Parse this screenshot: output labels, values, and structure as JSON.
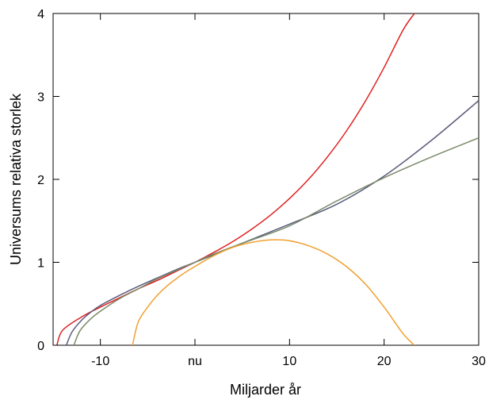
{
  "chart_data": {
    "type": "line",
    "title": "",
    "xlabel": "Miljarder år",
    "ylabel": "Universums relativa storlek",
    "xlim": [
      -15,
      30
    ],
    "ylim": [
      0,
      4
    ],
    "x_ticks": [
      {
        "value": -10,
        "label": "-10"
      },
      {
        "value": 0,
        "label": "nu"
      },
      {
        "value": 10,
        "label": "10"
      },
      {
        "value": 20,
        "label": "20"
      },
      {
        "value": 30,
        "label": "30"
      }
    ],
    "y_ticks": [
      {
        "value": 0,
        "label": "0"
      },
      {
        "value": 1,
        "label": "1"
      },
      {
        "value": 2,
        "label": "2"
      },
      {
        "value": 3,
        "label": "3"
      },
      {
        "value": 4,
        "label": "4"
      }
    ],
    "grid": false,
    "legend": "none",
    "series": [
      {
        "color": "#e02020",
        "x": [
          -14.6,
          -14,
          -12,
          -10,
          -8,
          -6,
          -4,
          -2,
          0,
          2,
          4,
          6,
          8,
          10,
          12,
          14,
          16,
          18,
          20,
          22,
          23.2
        ],
        "y": [
          0,
          0.18,
          0.34,
          0.46,
          0.57,
          0.68,
          0.78,
          0.89,
          1.0,
          1.12,
          1.25,
          1.4,
          1.57,
          1.77,
          2.0,
          2.27,
          2.58,
          2.94,
          3.35,
          3.8,
          4.0
        ]
      },
      {
        "color": "#5b5b7d",
        "x": [
          -13.6,
          -13,
          -12,
          -11,
          -10,
          -8,
          -6,
          -4,
          -2,
          0,
          2,
          5,
          10,
          15,
          20,
          25,
          30
        ],
        "y": [
          0,
          0.16,
          0.3,
          0.4,
          0.48,
          0.6,
          0.71,
          0.81,
          0.91,
          1.0,
          1.09,
          1.23,
          1.46,
          1.7,
          2.04,
          2.47,
          2.95
        ]
      },
      {
        "color": "#7a8a6a",
        "x": [
          -12.8,
          -12.4,
          -12,
          -11,
          -10,
          -8,
          -6,
          -4,
          -2,
          0,
          2,
          5,
          10,
          15,
          20,
          25,
          30
        ],
        "y": [
          0,
          0.12,
          0.2,
          0.32,
          0.41,
          0.56,
          0.68,
          0.8,
          0.9,
          1.0,
          1.1,
          1.23,
          1.44,
          1.74,
          2.02,
          2.27,
          2.5
        ]
      },
      {
        "color": "#f0a030",
        "x": [
          -6.6,
          -6,
          -5,
          -4,
          -3,
          -2,
          -1,
          0,
          2,
          4,
          6,
          8,
          10,
          12,
          14,
          16,
          18,
          20,
          22,
          23.2
        ],
        "y": [
          0,
          0.28,
          0.46,
          0.6,
          0.71,
          0.8,
          0.88,
          0.95,
          1.08,
          1.18,
          1.24,
          1.27,
          1.26,
          1.2,
          1.1,
          0.95,
          0.74,
          0.46,
          0.14,
          0
        ]
      }
    ]
  }
}
